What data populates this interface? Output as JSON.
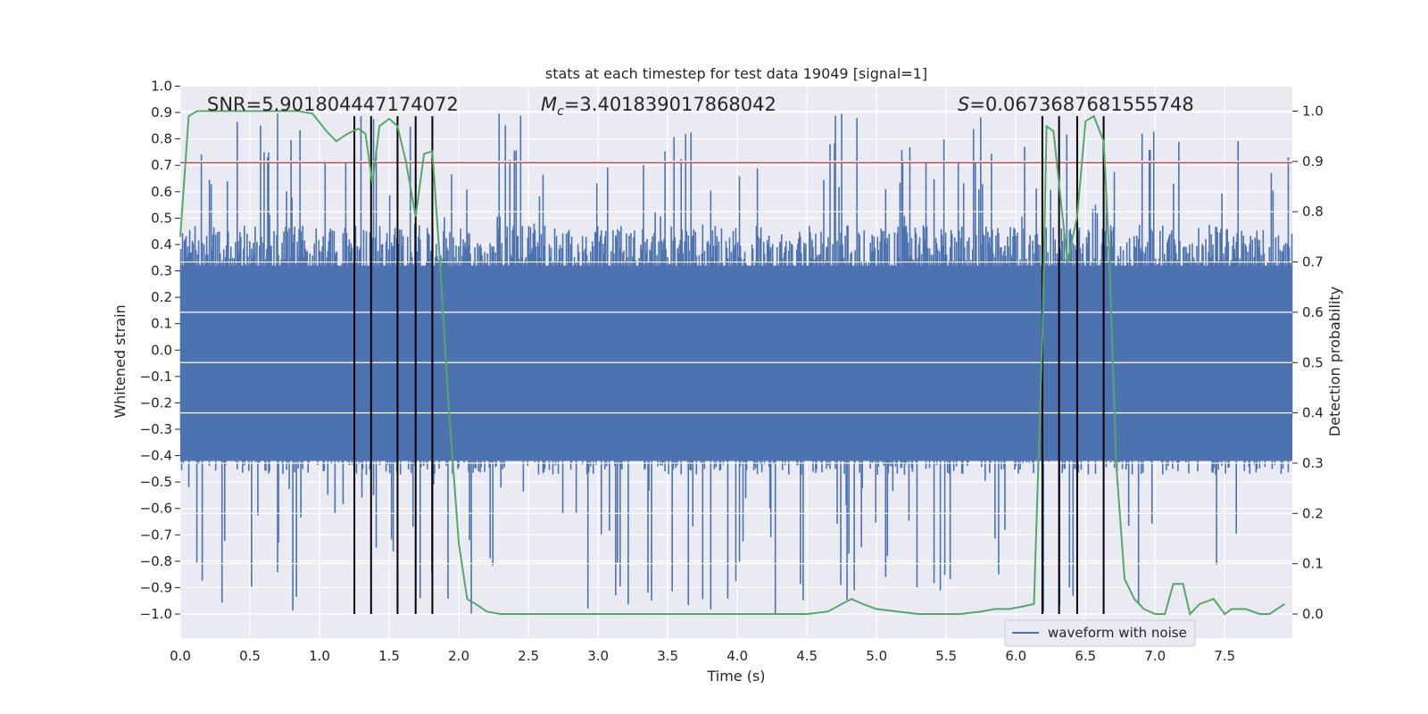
{
  "chart_data": {
    "type": "line",
    "title": "stats at each timestep for test data 19049 [signal=1]",
    "xlabel": "Time (s)",
    "ylabel_left": "Whitened strain",
    "ylabel_right": "Detection probability",
    "xlim": [
      0.0,
      8.0
    ],
    "ylim_left": [
      -1.09,
      1.0
    ],
    "ylim_right": [
      -0.05,
      1.05
    ],
    "x_ticks": [
      "0.0",
      "0.5",
      "1.0",
      "1.5",
      "2.0",
      "2.5",
      "3.0",
      "3.5",
      "4.0",
      "4.5",
      "5.0",
      "5.5",
      "6.0",
      "6.5",
      "7.0",
      "7.5"
    ],
    "y_left_ticks": [
      "1.0",
      "0.9",
      "0.8",
      "0.7",
      "0.6",
      "0.5",
      "0.4",
      "0.3",
      "0.2",
      "0.1",
      "0.0",
      "−0.1",
      "−0.2",
      "−0.3",
      "−0.4",
      "−0.5",
      "−0.6",
      "−0.7",
      "−0.8",
      "−0.9",
      "−1.0"
    ],
    "y_right_ticks": [
      "1.0",
      "0.9",
      "0.8",
      "0.7",
      "0.6",
      "0.5",
      "0.4",
      "0.3",
      "0.2",
      "0.1",
      "0.0"
    ],
    "annotations": {
      "snr": "SNR=5.901804447174072",
      "mc_symbol": "M",
      "mc_sub": "c",
      "mc_value": "=3.401839017868042",
      "s_symbol": "S",
      "s_value": "=0.0673687681555748"
    },
    "legend": {
      "label": "waveform with noise",
      "placement": "lower-right"
    },
    "threshold_left": 0.71,
    "event_lines_x": [
      1.25,
      1.37,
      1.56,
      1.69,
      1.81,
      6.19,
      6.31,
      6.44,
      6.63
    ],
    "series": [
      {
        "name": "waveform with noise",
        "axis": "left",
        "style": "noise",
        "color": "#4c72b0",
        "typical_range": [
          -0.45,
          0.45
        ],
        "extreme_range": [
          -1.0,
          0.9
        ]
      },
      {
        "axis": "right",
        "color": "#55a868",
        "x": [
          0.0,
          0.06,
          0.12,
          0.2,
          0.3,
          0.45,
          0.6,
          0.75,
          0.85,
          0.95,
          1.05,
          1.12,
          1.2,
          1.28,
          1.33,
          1.38,
          1.43,
          1.5,
          1.56,
          1.62,
          1.69,
          1.75,
          1.81,
          1.86,
          1.93,
          2.0,
          2.06,
          2.12,
          2.2,
          2.3,
          2.5,
          2.8,
          3.0,
          3.2,
          3.5,
          3.8,
          4.1,
          4.5,
          4.65,
          4.75,
          4.82,
          4.9,
          5.0,
          5.3,
          5.6,
          5.75,
          5.85,
          5.95,
          6.05,
          6.13,
          6.19,
          6.22,
          6.27,
          6.31,
          6.37,
          6.44,
          6.5,
          6.56,
          6.63,
          6.67,
          6.72,
          6.78,
          6.85,
          6.92,
          7.0,
          7.07,
          7.13,
          7.2,
          7.25,
          7.32,
          7.42,
          7.5,
          7.55,
          7.65,
          7.75,
          7.82,
          7.93
        ],
        "y": [
          0.75,
          0.99,
          1.0,
          1.0,
          1.0,
          1.0,
          1.0,
          1.0,
          1.0,
          0.995,
          0.96,
          0.94,
          0.955,
          0.965,
          0.955,
          0.855,
          0.97,
          0.985,
          0.97,
          0.9,
          0.79,
          0.915,
          0.92,
          0.72,
          0.4,
          0.14,
          0.03,
          0.02,
          0.005,
          0.0,
          0.0,
          0.0,
          0.0,
          0.0,
          0.0,
          0.0,
          0.0,
          0.0,
          0.005,
          0.02,
          0.03,
          0.02,
          0.01,
          0.0,
          0.0,
          0.005,
          0.01,
          0.01,
          0.015,
          0.02,
          0.55,
          0.97,
          0.96,
          0.855,
          0.7,
          0.79,
          0.98,
          0.99,
          0.94,
          0.72,
          0.3,
          0.07,
          0.03,
          0.01,
          0.0,
          0.0,
          0.06,
          0.06,
          0.0,
          0.02,
          0.03,
          0.0,
          0.01,
          0.01,
          0.0,
          0.0,
          0.02
        ]
      }
    ]
  }
}
